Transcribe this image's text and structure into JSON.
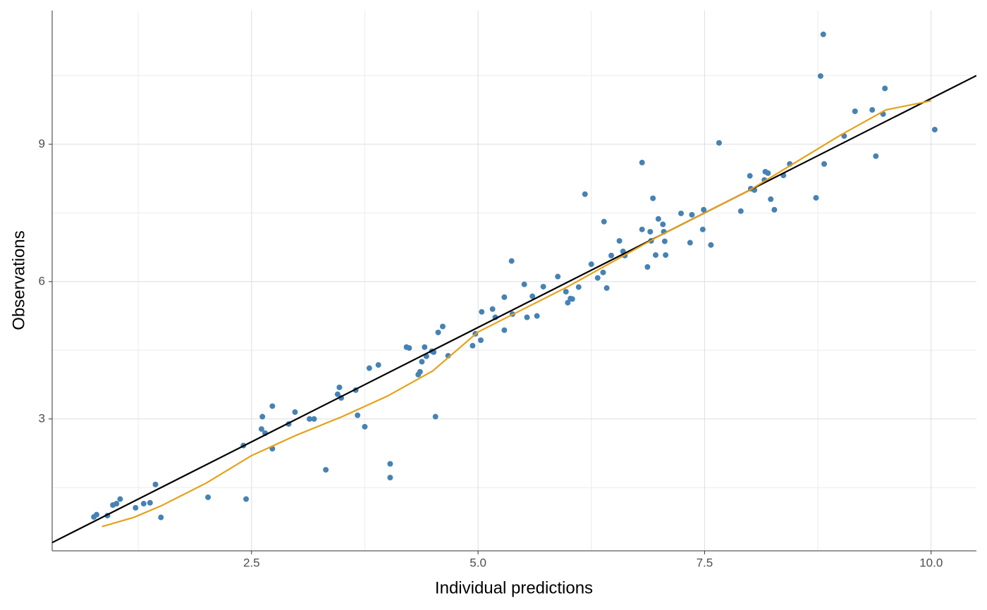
{
  "chart_data": {
    "type": "scatter",
    "x_label": "Individual predictions",
    "y_label": "Observations",
    "color": "#4682b4",
    "x": [
      0.76,
      0.79,
      0.91,
      0.97,
      1.01,
      1.05,
      1.22,
      1.31,
      1.38,
      1.44,
      1.5,
      2.02,
      2.41,
      2.44,
      2.62,
      2.61,
      2.65,
      2.73,
      2.73,
      2.91,
      2.98,
      3.14,
      3.19,
      3.32,
      3.45,
      3.47,
      3.49,
      3.65,
      3.67,
      3.75,
      3.8,
      3.9,
      4.03,
      4.03,
      4.21,
      4.24,
      4.34,
      4.36,
      4.38,
      4.41,
      4.43,
      4.49,
      4.51,
      4.53,
      4.56,
      4.61,
      4.67,
      4.94,
      4.97,
      5.03,
      5.04,
      5.16,
      5.19,
      5.29,
      5.29,
      5.38,
      5.37,
      5.51,
      5.54,
      5.6,
      5.65,
      5.72,
      5.88,
      5.97,
      5.99,
      6.02,
      6.04,
      6.11,
      6.18,
      6.25,
      6.32,
      6.38,
      6.39,
      6.42,
      6.47,
      6.56,
      6.6,
      6.62,
      6.81,
      6.81,
      6.87,
      6.9,
      6.91,
      6.93,
      6.96,
      6.99,
      7.04,
      7.05,
      7.06,
      7.07,
      7.24,
      7.34,
      7.36,
      7.48,
      7.49,
      7.57,
      7.66,
      7.9,
      8.0,
      8.01,
      8.05,
      8.16,
      8.17,
      8.2,
      8.23,
      8.27,
      8.37,
      8.44,
      8.73,
      8.78,
      8.81,
      8.82,
      9.04,
      9.16,
      9.35,
      9.39,
      9.47,
      9.49,
      10.04
    ],
    "values": [
      0.86,
      0.91,
      0.89,
      1.12,
      1.15,
      1.25,
      1.06,
      1.15,
      1.17,
      1.57,
      0.85,
      1.29,
      2.42,
      1.25,
      3.05,
      2.78,
      2.69,
      3.28,
      2.35,
      2.89,
      3.15,
      3.0,
      3.0,
      1.89,
      3.54,
      3.69,
      3.46,
      3.63,
      3.08,
      2.83,
      4.11,
      4.18,
      2.02,
      1.72,
      4.57,
      4.55,
      3.97,
      4.03,
      4.25,
      4.57,
      4.37,
      4.48,
      4.46,
      3.05,
      4.89,
      5.02,
      4.38,
      4.6,
      4.86,
      4.72,
      5.34,
      5.4,
      5.22,
      4.94,
      5.66,
      5.29,
      6.45,
      5.94,
      5.22,
      5.68,
      5.25,
      5.89,
      6.11,
      5.78,
      5.54,
      5.63,
      5.62,
      5.88,
      7.91,
      6.38,
      6.08,
      6.2,
      7.31,
      5.86,
      6.57,
      6.89,
      6.66,
      6.57,
      7.14,
      8.6,
      6.32,
      7.09,
      6.89,
      7.82,
      6.58,
      7.37,
      7.25,
      7.09,
      6.88,
      6.58,
      7.49,
      6.85,
      7.46,
      7.14,
      7.57,
      6.8,
      9.03,
      7.54,
      8.31,
      8.03,
      8.0,
      8.22,
      8.4,
      8.37,
      7.8,
      7.57,
      8.32,
      8.57,
      7.83,
      10.49,
      11.4,
      8.57,
      9.18,
      9.72,
      9.75,
      8.74,
      9.66,
      10.22,
      9.32
    ],
    "ref_line": {
      "x": [
        0.3,
        10.5
      ],
      "values": [
        0.3,
        10.5
      ],
      "color": "#000000"
    },
    "smooth": {
      "x": [
        0.85,
        1.2,
        1.5,
        2.0,
        2.5,
        3.0,
        3.5,
        4.0,
        4.5,
        5.0,
        5.5,
        6.0,
        6.5,
        7.0,
        7.5,
        8.0,
        8.5,
        9.0,
        9.5,
        10.0
      ],
      "values": [
        0.65,
        0.85,
        1.1,
        1.6,
        2.2,
        2.65,
        3.05,
        3.5,
        4.05,
        4.9,
        5.4,
        5.9,
        6.45,
        7.0,
        7.5,
        8.0,
        8.6,
        9.2,
        9.75,
        9.95
      ],
      "color": "#e6a118"
    },
    "xlim": [
      0.3,
      10.5
    ],
    "ylim": [
      0.12,
      11.92
    ],
    "xticks": [
      {
        "value": 2.5,
        "label": "2.5"
      },
      {
        "value": 5,
        "label": "5.0"
      },
      {
        "value": 7.5,
        "label": "7.5"
      },
      {
        "value": 10,
        "label": "10.0"
      }
    ],
    "yticks": [
      3,
      6,
      9
    ],
    "xminor": [
      1.25,
      3.75,
      6.25,
      8.75
    ],
    "yminor": [
      1.5,
      4.5,
      7.5,
      10.5
    ],
    "grid": true
  }
}
